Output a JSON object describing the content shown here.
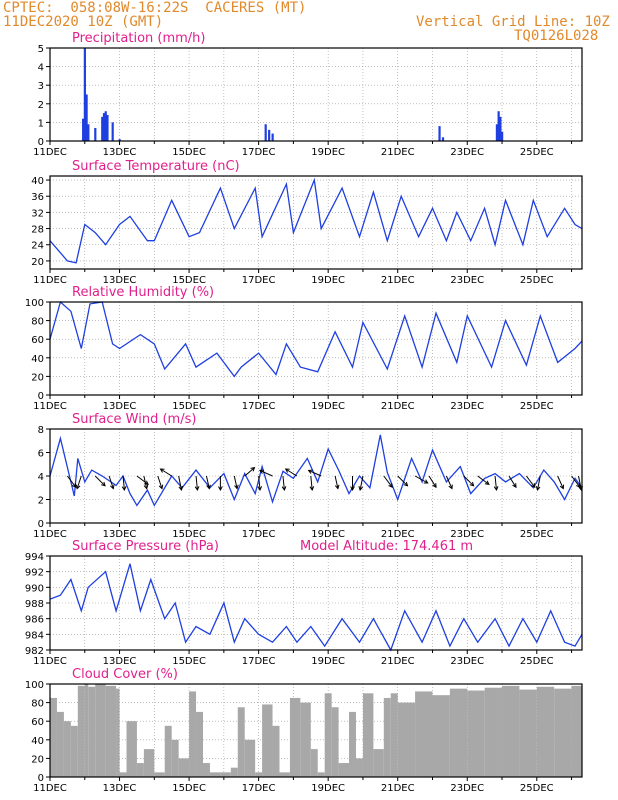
{
  "header": {
    "line1": "CPTEC:  058:08W-16:22S  CACERES (MT)",
    "line2": "11DEC2020 10Z (GMT)",
    "right1": "Vertical Grid Line: 10Z",
    "right2": "TQ0126L028"
  },
  "colors": {
    "header": "#e08a2c",
    "title": "#e0208c",
    "series": "#1f3fe0",
    "cloud": "#a8a8a8",
    "arrow": "#000000",
    "grid": "#999999"
  },
  "chart_data": [
    {
      "type": "bar",
      "title": "Precipitation (mm/h)",
      "ylim": [
        0,
        5
      ],
      "yticks": [
        0,
        1,
        2,
        3,
        4,
        5
      ],
      "xticks": [
        "11DEC",
        "13DEC",
        "15DEC",
        "17DEC",
        "19DEC",
        "21DEC",
        "23DEC",
        "25DEC"
      ],
      "x_day": [
        0.95,
        1.0,
        1.05,
        1.1,
        1.3,
        1.5,
        1.55,
        1.6,
        1.65,
        1.8,
        2.0,
        6.2,
        6.3,
        6.4,
        11.2,
        11.3,
        12.85,
        12.9,
        12.95,
        13.0
      ],
      "values": [
        1.2,
        5.0,
        2.5,
        0.9,
        0.7,
        1.3,
        1.5,
        1.6,
        1.4,
        1.0,
        0.1,
        0.9,
        0.6,
        0.4,
        0.8,
        0.2,
        0.9,
        1.6,
        1.3,
        0.5
      ]
    },
    {
      "type": "line",
      "title": "Surface Temperature (nC)",
      "ylim": [
        18,
        41
      ],
      "yticks": [
        20,
        24,
        28,
        32,
        36,
        40
      ],
      "xticks": [
        "11DEC",
        "13DEC",
        "15DEC",
        "17DEC",
        "19DEC",
        "21DEC",
        "23DEC",
        "25DEC"
      ],
      "x_day": [
        0,
        0.5,
        0.75,
        1.0,
        1.3,
        1.6,
        2.0,
        2.3,
        2.8,
        3.0,
        3.5,
        4.0,
        4.3,
        4.9,
        5.3,
        5.9,
        6.1,
        6.8,
        7.0,
        7.6,
        7.8,
        8.4,
        8.9,
        9.3,
        9.7,
        10.1,
        10.6,
        11.0,
        11.4,
        11.7,
        12.1,
        12.5,
        12.8,
        13.1,
        13.6,
        13.9,
        14.3,
        14.8,
        15.1,
        15.3
      ],
      "values": [
        25,
        20,
        19.5,
        29,
        27,
        24,
        29,
        31,
        25,
        25,
        35,
        26,
        27,
        38,
        28,
        38,
        26,
        39,
        27,
        40,
        28,
        38,
        26,
        37,
        25,
        36,
        26,
        33,
        25,
        32,
        25,
        33,
        24,
        35,
        24,
        35,
        26,
        33,
        29,
        28
      ]
    },
    {
      "type": "line",
      "title": "Relative Humidity (%)",
      "ylim": [
        0,
        100
      ],
      "yticks": [
        0,
        20,
        40,
        60,
        80,
        100
      ],
      "xticks": [
        "11DEC",
        "13DEC",
        "15DEC",
        "17DEC",
        "19DEC",
        "21DEC",
        "23DEC",
        "25DEC"
      ],
      "x_day": [
        0,
        0.3,
        0.6,
        0.9,
        1.15,
        1.5,
        1.8,
        2.0,
        2.6,
        3.0,
        3.3,
        3.9,
        4.2,
        4.8,
        5.3,
        5.5,
        6.0,
        6.5,
        6.8,
        7.2,
        7.7,
        8.2,
        8.7,
        9.0,
        9.7,
        10.2,
        10.7,
        11.1,
        11.7,
        12.0,
        12.7,
        13.1,
        13.7,
        14.1,
        14.6,
        15.1,
        15.3
      ],
      "values": [
        60,
        100,
        90,
        50,
        98,
        100,
        55,
        50,
        65,
        55,
        28,
        55,
        30,
        45,
        20,
        30,
        45,
        22,
        55,
        30,
        25,
        68,
        30,
        78,
        28,
        85,
        30,
        88,
        35,
        85,
        30,
        80,
        32,
        85,
        35,
        50,
        58
      ]
    },
    {
      "type": "line",
      "title": "Surface Wind (m/s)",
      "ylim": [
        0,
        8
      ],
      "yticks": [
        0,
        2,
        4,
        6,
        8
      ],
      "xticks": [
        "11DEC",
        "13DEC",
        "15DEC",
        "17DEC",
        "19DEC",
        "21DEC",
        "23DEC",
        "25DEC"
      ],
      "x_day": [
        0,
        0.3,
        0.7,
        0.8,
        1.0,
        1.2,
        1.5,
        1.9,
        2.1,
        2.3,
        2.5,
        2.8,
        3.0,
        3.5,
        3.8,
        4.2,
        4.6,
        5.0,
        5.3,
        5.6,
        5.9,
        6.1,
        6.4,
        6.7,
        7.0,
        7.4,
        7.7,
        8.0,
        8.3,
        8.6,
        8.9,
        9.2,
        9.5,
        9.7,
        10.0,
        10.4,
        10.7,
        11.0,
        11.4,
        11.8,
        12.1,
        12.5,
        12.8,
        13.1,
        13.5,
        13.9,
        14.2,
        14.5,
        14.8,
        15.1,
        15.3
      ],
      "values": [
        4,
        7.2,
        2.3,
        5.5,
        3.5,
        4.5,
        4,
        3.2,
        4,
        2.5,
        1.5,
        2.8,
        1.5,
        4,
        3,
        4.5,
        3,
        4.2,
        2,
        4.2,
        2.5,
        4.8,
        1.8,
        4.4,
        3.8,
        5.5,
        3.5,
        6.3,
        4.5,
        2.5,
        4,
        3,
        7.5,
        4.3,
        2,
        5.5,
        3.5,
        6.2,
        3.5,
        4.8,
        2.5,
        3.8,
        4.2,
        3.5,
        4.2,
        3,
        4.5,
        3.5,
        2,
        3.8,
        3
      ],
      "arrows_day": [
        0.5,
        0.9,
        1.3,
        1.7,
        2.1,
        2.5,
        2.7,
        3.1,
        3.5,
        3.7,
        4.2,
        4.5,
        4.9,
        5.3,
        5.6,
        6.0,
        6.4,
        6.7,
        7.1,
        7.5,
        7.8,
        8.2,
        8.7,
        9.0,
        9.6,
        10.0,
        10.5,
        10.9,
        11.4,
        11.9,
        12.3,
        12.8,
        13.2,
        13.7,
        14.1,
        14.6,
        15.0,
        15.2
      ],
      "arrows_u": [
        0.6,
        -0.3,
        0.7,
        0.3,
        0.1,
        0.8,
        0.2,
        0.3,
        -0.8,
        0.2,
        0.1,
        0.2,
        0.0,
        0.2,
        0.7,
        0.1,
        -0.9,
        0.1,
        -0.8,
        0.1,
        -0.9,
        0.2,
        0.0,
        -0.2,
        0.6,
        0.7,
        0.9,
        0.5,
        0.4,
        0.7,
        0.8,
        0.1,
        0.5,
        0.6,
        -0.2,
        0.4,
        0.6,
        0.2
      ],
      "arrows_v": [
        -0.8,
        -0.9,
        -0.7,
        -0.9,
        -1.0,
        -0.6,
        -0.9,
        -0.9,
        0.5,
        -1.0,
        -1.0,
        -0.9,
        -1.0,
        -0.9,
        0.6,
        -1.0,
        0.4,
        -1.0,
        0.5,
        -1.0,
        0.4,
        -0.9,
        -1.0,
        -1.0,
        -0.8,
        -0.7,
        -0.5,
        -0.8,
        -0.9,
        -0.7,
        -0.6,
        -1.0,
        -0.8,
        -0.8,
        -1.0,
        -0.9,
        -0.8,
        -1.0
      ]
    },
    {
      "type": "line",
      "title": "Surface Pressure (hPa)",
      "note": "Model Altitude: 174.461  m",
      "ylim": [
        982,
        994
      ],
      "yticks": [
        982,
        984,
        986,
        988,
        990,
        992,
        994
      ],
      "xticks": [
        "11DEC",
        "13DEC",
        "15DEC",
        "17DEC",
        "19DEC",
        "21DEC",
        "23DEC",
        "25DEC"
      ],
      "x_day": [
        0,
        0.3,
        0.6,
        0.9,
        1.1,
        1.6,
        1.9,
        2.3,
        2.6,
        2.9,
        3.3,
        3.6,
        3.9,
        4.2,
        4.6,
        5.0,
        5.3,
        5.6,
        6.0,
        6.4,
        6.8,
        7.1,
        7.5,
        7.9,
        8.4,
        8.9,
        9.3,
        9.8,
        10.2,
        10.7,
        11.1,
        11.5,
        11.9,
        12.3,
        12.8,
        13.2,
        13.6,
        14.0,
        14.4,
        14.8,
        15.1,
        15.3
      ],
      "values": [
        988.5,
        989,
        991,
        987,
        990,
        992,
        987,
        993,
        987,
        991,
        986,
        988,
        983,
        985,
        984,
        988,
        983,
        986,
        984,
        983,
        985,
        983,
        985,
        982.5,
        986,
        983,
        986,
        982,
        987,
        983,
        987,
        982.5,
        986,
        983,
        986,
        982.5,
        986,
        983,
        987,
        983,
        982.5,
        984
      ]
    },
    {
      "type": "area",
      "title": "Cloud Cover (%)",
      "ylim": [
        0,
        100
      ],
      "yticks": [
        0,
        20,
        40,
        60,
        80,
        100
      ],
      "xticks": [
        "11DEC",
        "13DEC",
        "15DEC",
        "17DEC",
        "19DEC",
        "21DEC",
        "23DEC",
        "25DEC"
      ],
      "x_day": [
        0,
        0.2,
        0.4,
        0.6,
        0.8,
        1.0,
        1.1,
        1.3,
        1.6,
        1.9,
        2.0,
        2.2,
        2.5,
        2.7,
        3.0,
        3.3,
        3.5,
        3.7,
        4.0,
        4.2,
        4.4,
        4.6,
        4.9,
        5.2,
        5.4,
        5.6,
        5.9,
        6.1,
        6.4,
        6.6,
        6.9,
        7.2,
        7.5,
        7.7,
        7.9,
        8.1,
        8.3,
        8.6,
        8.8,
        9.0,
        9.3,
        9.6,
        9.8,
        10.0,
        10.5,
        11.0,
        11.5,
        12.0,
        12.5,
        13.0,
        13.5,
        14.0,
        14.5,
        15.0,
        15.3
      ],
      "values": [
        85,
        70,
        60,
        55,
        98,
        100,
        97,
        100,
        98,
        95,
        5,
        60,
        15,
        30,
        5,
        55,
        40,
        20,
        92,
        70,
        15,
        5,
        5,
        10,
        75,
        40,
        5,
        78,
        55,
        5,
        85,
        80,
        30,
        5,
        90,
        75,
        15,
        70,
        20,
        90,
        30,
        85,
        90,
        80,
        92,
        88,
        95,
        93,
        96,
        98,
        94,
        97,
        95,
        98,
        97
      ]
    }
  ]
}
